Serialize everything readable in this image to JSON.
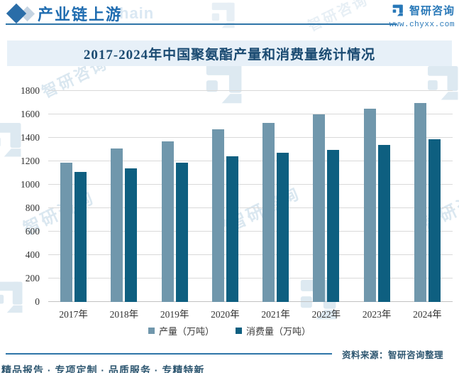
{
  "header": {
    "title": "产业链上游",
    "brand": "智研咨询",
    "website": "www.chyxx.com",
    "watermark_tail": "hain"
  },
  "chart_data": {
    "type": "bar",
    "title": "2017-2024年中国聚氨酯产量和消费量统计情况",
    "categories": [
      "2017年",
      "2018年",
      "2019年",
      "2020年",
      "2021年",
      "2022年",
      "2023年",
      "2024年"
    ],
    "series": [
      {
        "name": "产量（万吨）",
        "color": "#7097ac",
        "values": [
          1190,
          1310,
          1370,
          1470,
          1530,
          1600,
          1650,
          1700
        ]
      },
      {
        "name": "消费量（万吨）",
        "color": "#0e5f80",
        "values": [
          1110,
          1140,
          1190,
          1240,
          1270,
          1300,
          1340,
          1390
        ]
      }
    ],
    "ylim": [
      0,
      1800
    ],
    "ytick_step": 200,
    "grid": true,
    "legend_position": "bottom"
  },
  "footer": {
    "source": "资料来源：智研咨询整理",
    "tagline": "精品报告 · 专项定制 · 品质服务 · 专精特新"
  },
  "watermark": {
    "text": "智研咨询"
  },
  "colors": {
    "brand_blue": "#1f6cb0",
    "rule": "#2e75a8",
    "banner_bg": "#e7f0f8",
    "title_text": "#1a4a71",
    "bar_production": "#7097ac",
    "bar_consumption": "#0e5f80",
    "gridline": "#d9d9d9",
    "footer_text": "#2d5670",
    "watermark": "#bcd4e4"
  }
}
